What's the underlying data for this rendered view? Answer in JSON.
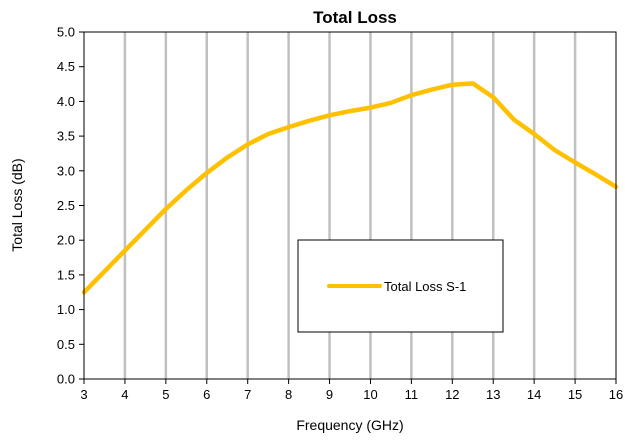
{
  "chart_data": {
    "type": "line",
    "title": "Total Loss",
    "xlabel": "Frequency (GHz)",
    "ylabel": "Total  Loss (dB)",
    "xlim": [
      3,
      16
    ],
    "ylim": [
      0,
      5
    ],
    "x_ticks": [
      "3",
      "4",
      "5",
      "6",
      "7",
      "8",
      "9",
      "10",
      "11",
      "12",
      "13",
      "14",
      "15",
      "16"
    ],
    "y_ticks": [
      "0.0",
      "0.5",
      "1.0",
      "1.5",
      "2.0",
      "2.5",
      "3.0",
      "3.5",
      "4.0",
      "4.5",
      "5.0"
    ],
    "grid": "vertical",
    "legend": "center-right",
    "series": [
      {
        "name": "Total Loss S-1",
        "color": "#FFC000",
        "x": [
          3,
          3.5,
          4,
          4.5,
          5,
          5.5,
          6,
          6.5,
          7,
          7.5,
          8,
          8.5,
          9,
          9.5,
          10,
          10.5,
          11,
          11.5,
          12,
          12.5,
          13,
          13.5,
          14,
          14.5,
          15,
          15.5,
          16
        ],
        "y": [
          1.25,
          1.55,
          1.85,
          2.15,
          2.45,
          2.72,
          2.97,
          3.19,
          3.38,
          3.53,
          3.63,
          3.72,
          3.8,
          3.86,
          3.91,
          3.98,
          4.09,
          4.17,
          4.24,
          4.26,
          4.06,
          3.74,
          3.53,
          3.3,
          3.12,
          2.95,
          2.77
        ]
      }
    ]
  }
}
